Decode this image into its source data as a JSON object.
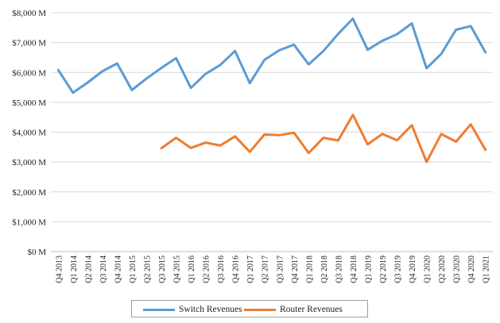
{
  "chart_data": {
    "type": "line",
    "title": "",
    "xlabel": "",
    "ylabel": "",
    "ylim": [
      0,
      8000
    ],
    "yticks": [
      "$0 M",
      "$1,000 M",
      "$2,000 M",
      "$3,000 M",
      "$4,000 M",
      "$5,000 M",
      "$6,000 M",
      "$7,000 M",
      "$8,000 M"
    ],
    "grid": true,
    "legend_position": "bottom",
    "categories": [
      "Q4 2013",
      "Q1 2014",
      "Q2 2014",
      "Q3 2014",
      "Q4 2014",
      "Q1 2015",
      "Q2 2015",
      "Q3 2015",
      "Q4 2015",
      "Q1 2016",
      "Q2 2016",
      "Q3 2016",
      "Q4 2016",
      "Q1 2017",
      "Q2 2017",
      "Q3 2017",
      "Q4 2017",
      "Q1 2018",
      "Q2 2018",
      "Q3 2018",
      "Q4 2018",
      "Q1 2019",
      "Q2 2019",
      "Q3 2019",
      "Q4 2019",
      "Q1 2020",
      "Q2 2020",
      "Q3 2020",
      "Q4 2020",
      "Q1 2021"
    ],
    "series": [
      {
        "name": "Switch Revenues",
        "color": "#5b9bd5",
        "values": [
          6080,
          5320,
          5660,
          6040,
          6300,
          5410,
          5800,
          6150,
          6480,
          5480,
          5950,
          6250,
          6720,
          5640,
          6420,
          6740,
          6930,
          6270,
          6720,
          7290,
          7800,
          6760,
          7060,
          7280,
          7640,
          6140,
          6620,
          7430,
          7550,
          6670
        ]
      },
      {
        "name": "Router Revenues",
        "color": "#ed7d31",
        "values": [
          null,
          null,
          null,
          null,
          null,
          null,
          null,
          3460,
          3810,
          3470,
          3650,
          3550,
          3860,
          3340,
          3920,
          3900,
          3980,
          3300,
          3810,
          3720,
          4580,
          3590,
          3940,
          3730,
          4230,
          3000,
          3940,
          3680,
          4260,
          3410
        ]
      }
    ]
  }
}
